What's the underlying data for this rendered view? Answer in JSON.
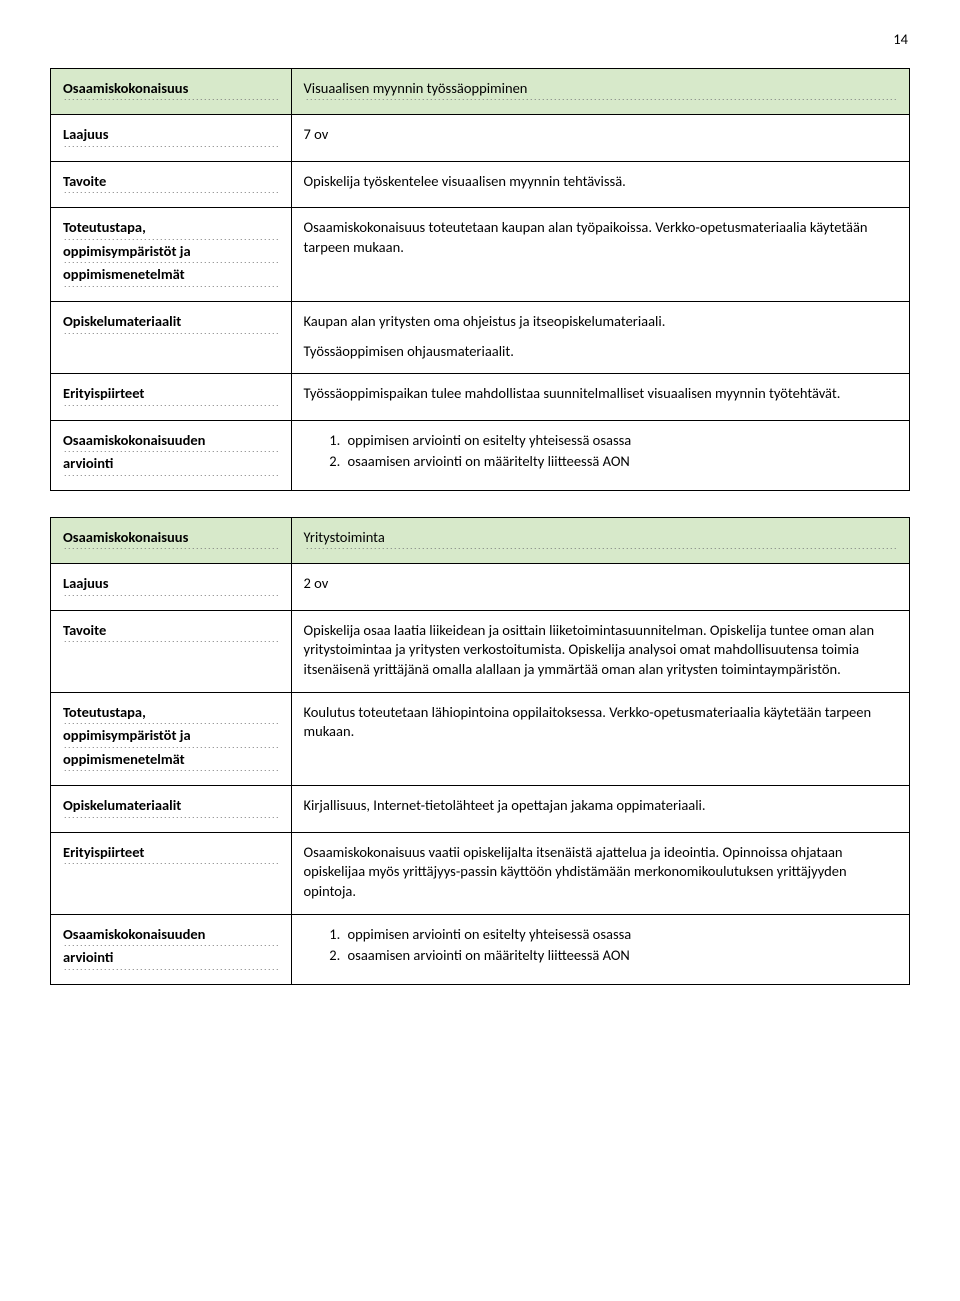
{
  "page_number": "14",
  "labels": {
    "osaamiskokonaisuus": "Osaamiskokonaisuus",
    "laajuus": "Laajuus",
    "tavoite": "Tavoite",
    "toteutustapa1": "Toteutustapa,",
    "toteutustapa2": "oppimisympäristöt ja",
    "toteutustapa3": "oppimismenetelmät",
    "opiskelumateriaalit": "Opiskelumateriaalit",
    "erityispiirteet": "Erityispiirteet",
    "arviointi1": "Osaamiskokonaisuuden",
    "arviointi2": "arviointi"
  },
  "section1": {
    "title": "Visuaalisen myynnin työssäoppiminen",
    "laajuus": "7 ov",
    "tavoite": "Opiskelija työskentelee visuaalisen myynnin tehtävissä.",
    "toteutus": "Osaamiskokonaisuus toteutetaan kaupan alan työpaikoissa. Verkko-opetusmateriaalia käytetään tarpeen mukaan.",
    "materiaalit_p1": "Kaupan alan yritysten oma ohjeistus ja itseopiskelumateriaali.",
    "materiaalit_p2": "Työssäoppimisen ohjausmateriaalit.",
    "erityis": "Työssäoppimispaikan tulee mahdollistaa suunnitelmalliset visuaalisen myynnin työtehtävät.",
    "arviointi_item1": "oppimisen arviointi on esitelty yhteisessä osassa",
    "arviointi_item2": "osaamisen arviointi on määritelty liitteessä AON"
  },
  "section2": {
    "title": "Yritystoiminta",
    "laajuus": "2 ov",
    "tavoite": "Opiskelija osaa laatia liikeidean ja osittain liiketoimintasuunnitelman. Opiskelija tuntee oman alan yritystoimintaa ja yritysten verkostoitumista. Opiskelija analysoi omat mahdollisuutensa toimia itsenäisenä yrittäjänä omalla alallaan ja ymmärtää oman alan yritysten toimintaympäristön.",
    "toteutus": "Koulutus toteutetaan lähiopintoina oppilaitoksessa. Verkko-opetusmateriaalia käytetään tarpeen mukaan.",
    "materiaalit": "Kirjallisuus, Internet-tietolähteet ja opettajan jakama oppimateriaali.",
    "erityis": "Osaamiskokonaisuus vaatii opiskelijalta itsenäistä ajattelua ja ideointia. Opinnoissa ohjataan opiskelijaa myös yrittäjyys-passin käyttöön yhdistämään merkonomikoulutuksen yrittäjyyden opintoja.",
    "arviointi_item1": "oppimisen arviointi on esitelty yhteisessä osassa",
    "arviointi_item2": "osaamisen arviointi on määritelty liitteessä AON"
  }
}
